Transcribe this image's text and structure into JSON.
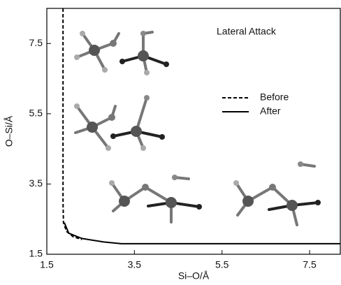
{
  "chart_data": {
    "type": "line",
    "annotation": "Lateral Attack",
    "xlabel": "Si–O/Å",
    "ylabel": "O–Si/Å",
    "xlim": [
      1.5,
      8.2
    ],
    "ylim": [
      1.5,
      8.5
    ],
    "xticks": [
      1.5,
      3.5,
      5.5,
      7.5
    ],
    "yticks": [
      1.5,
      3.5,
      5.5,
      7.5
    ],
    "series": [
      {
        "name": "Before",
        "color": "#000000",
        "style": "dashed",
        "x": [
          1.87,
          1.87,
          1.88,
          1.95,
          2.1,
          2.3
        ],
        "values": [
          8.5,
          3.0,
          2.4,
          2.15,
          2.0,
          1.92
        ]
      },
      {
        "name": "After",
        "color": "#000000",
        "style": "solid",
        "x": [
          1.9,
          2.0,
          2.3,
          2.8,
          3.2,
          8.2
        ],
        "values": [
          2.4,
          2.1,
          1.95,
          1.85,
          1.8,
          1.8
        ]
      }
    ]
  }
}
